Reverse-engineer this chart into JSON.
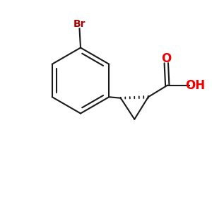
{
  "bg_color": "#ffffff",
  "bond_color": "#1a1a1a",
  "o_color": "#ee0000",
  "br_color": "#aa0000",
  "lw": 1.5,
  "figsize": [
    3.0,
    3.0
  ],
  "dpi": 100,
  "xlim": [
    0,
    10
  ],
  "ylim": [
    0,
    10
  ]
}
